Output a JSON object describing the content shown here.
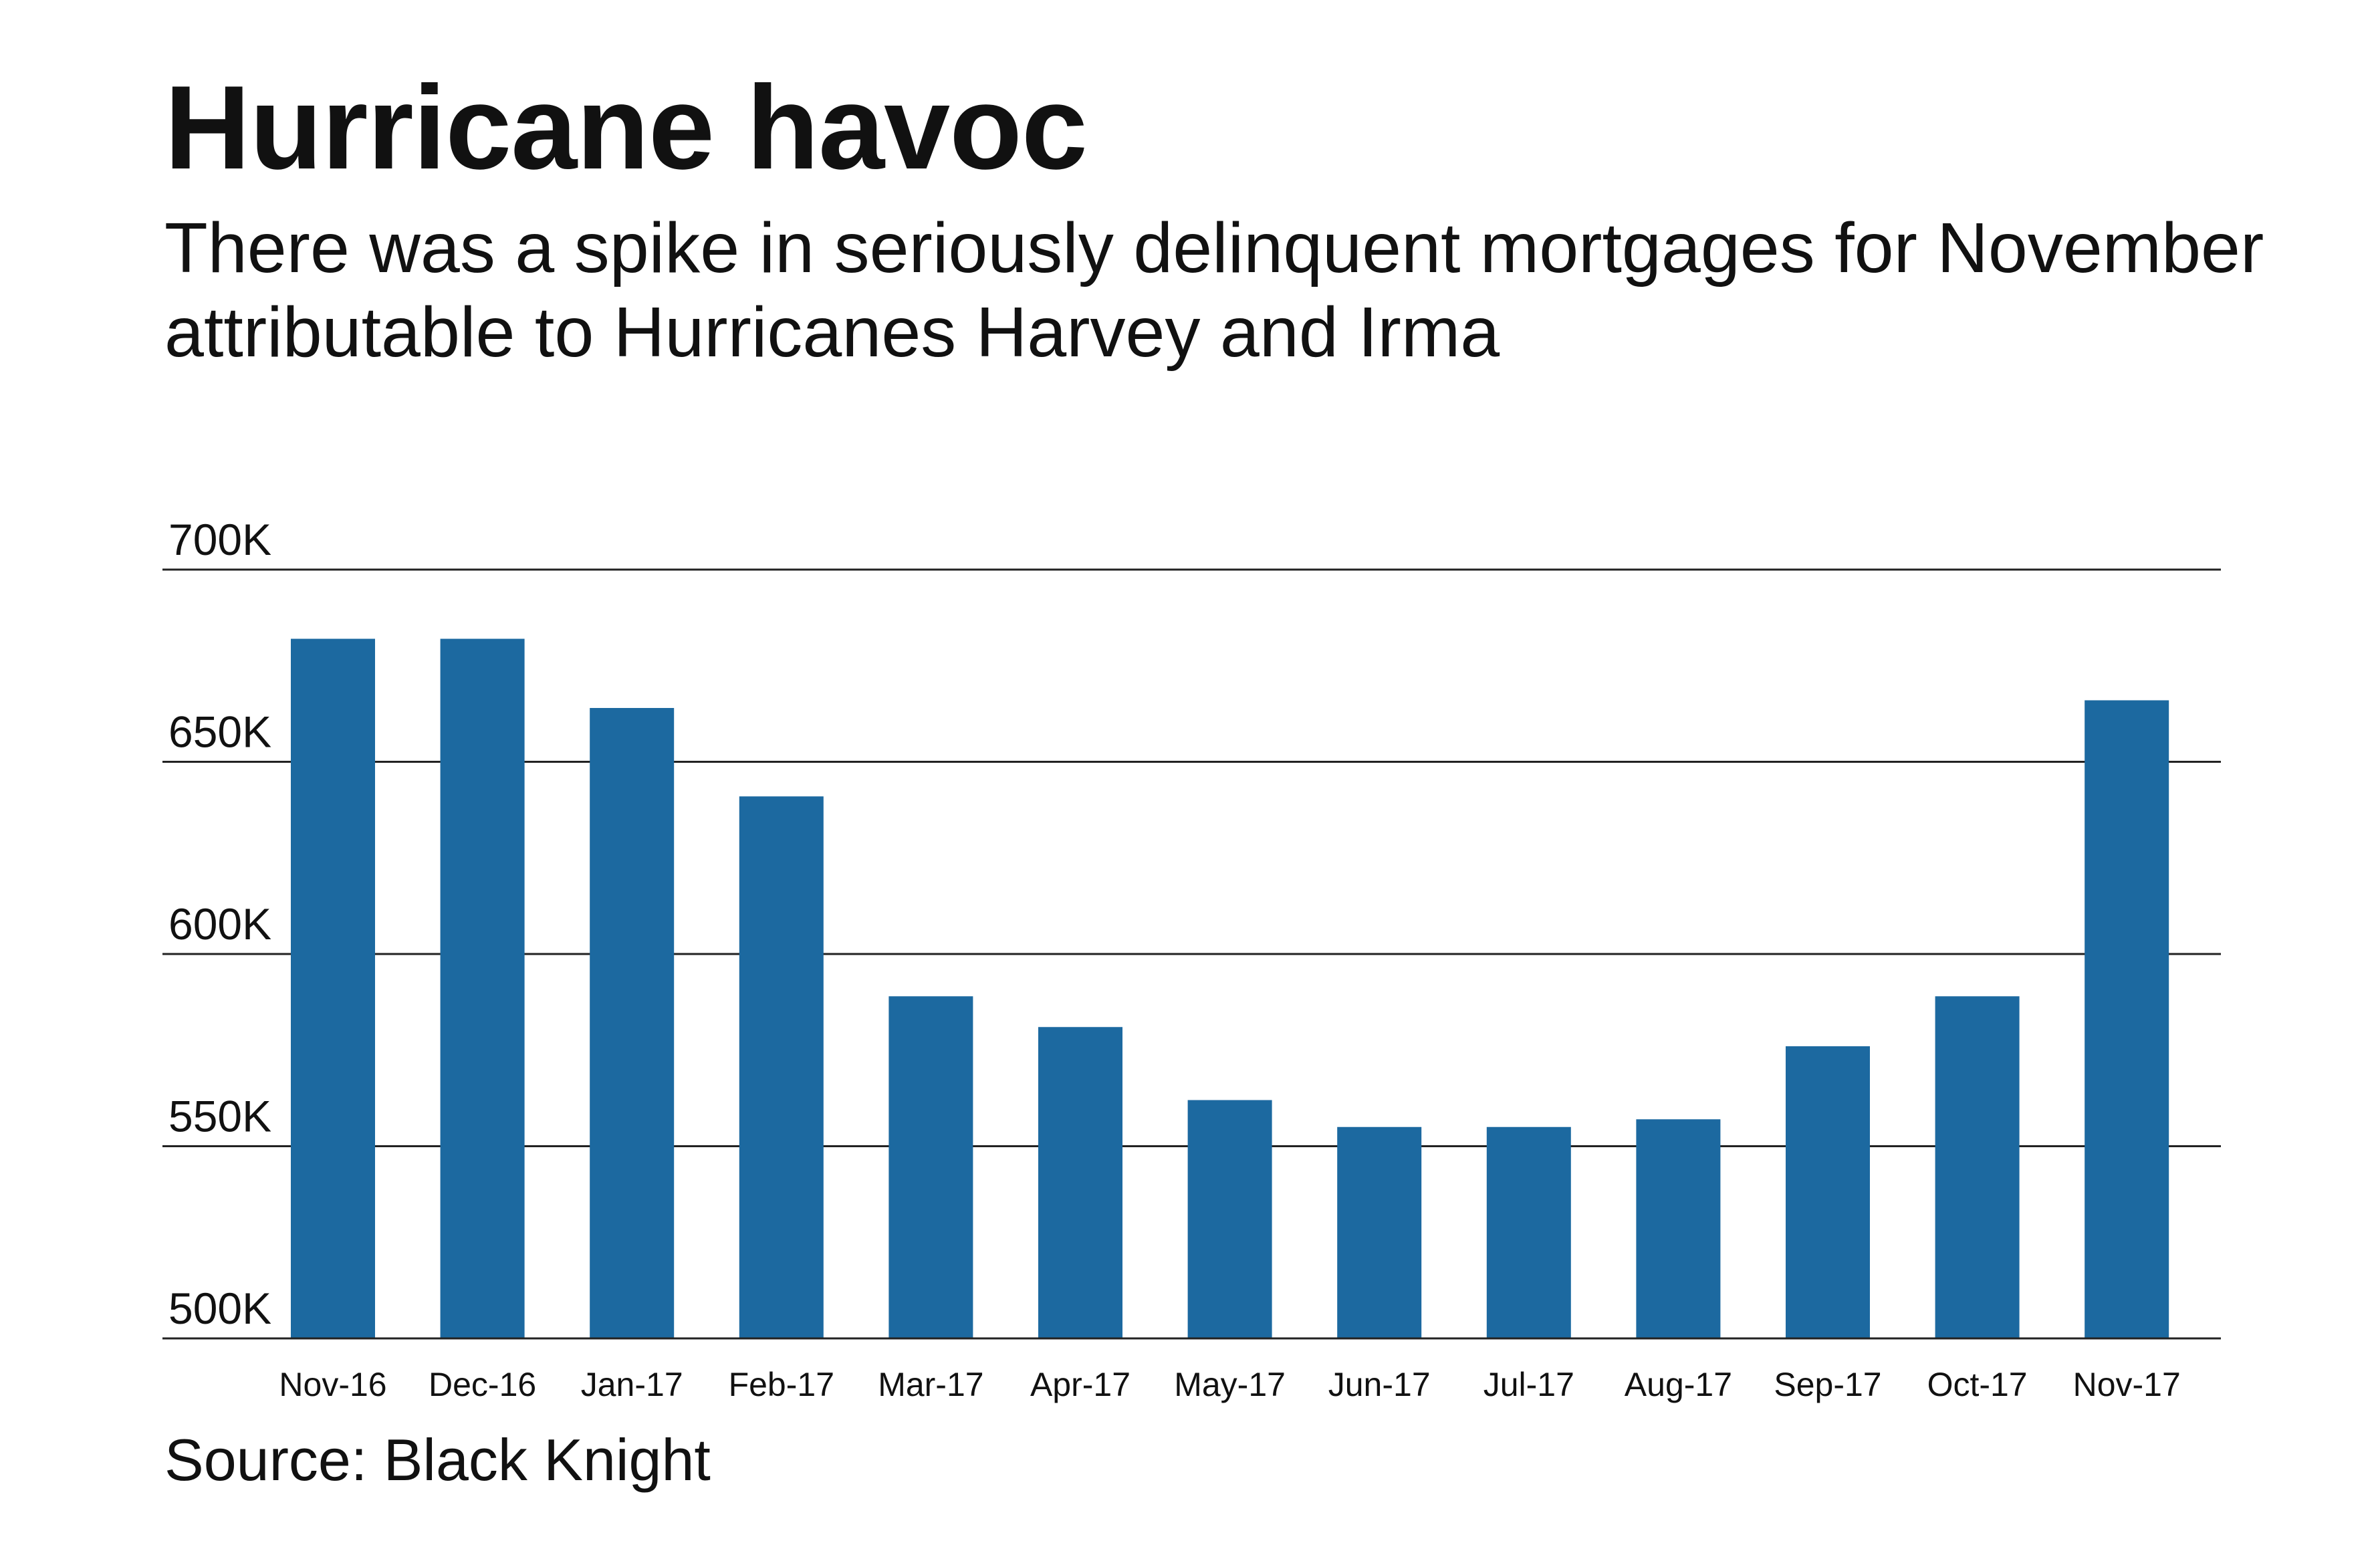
{
  "title": "Hurricane havoc",
  "subtitle": "There was a spike in seriously delinquent mortgages for November attributable to Hurricanes Harvey and Irma",
  "source": "Source: Black Knight",
  "colors": {
    "bar": "#1c69a0",
    "grid": "#222222",
    "text": "#111111"
  },
  "chart_data": {
    "type": "bar",
    "categories": [
      "Nov-16",
      "Dec-16",
      "Jan-17",
      "Feb-17",
      "Mar-17",
      "Apr-17",
      "May-17",
      "Jun-17",
      "Jul-17",
      "Aug-17",
      "Sep-17",
      "Oct-17",
      "Nov-17"
    ],
    "values": [
      682000,
      682000,
      664000,
      641000,
      589000,
      581000,
      562000,
      555000,
      555000,
      557000,
      576000,
      589000,
      666000
    ],
    "ylim": [
      500000,
      700000
    ],
    "yticks": [
      500000,
      550000,
      600000,
      650000,
      700000
    ],
    "ytick_labels": [
      "500K",
      "550K",
      "600K",
      "650K",
      "700K"
    ],
    "xlabel": "",
    "ylabel": "",
    "grid": true
  }
}
